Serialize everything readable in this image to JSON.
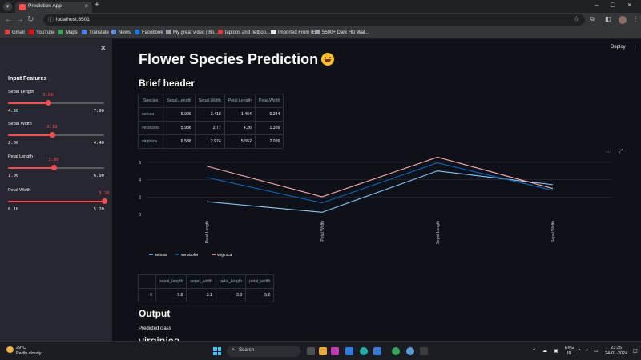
{
  "browser": {
    "tab_title": "Prediction App",
    "url": "localhost:8501",
    "bookmarks": [
      {
        "label": "Gmail",
        "color": "#ea4335"
      },
      {
        "label": "YouTube",
        "color": "#ff0000"
      },
      {
        "label": "Maps",
        "color": "#34a853"
      },
      {
        "label": "Translate",
        "color": "#4285f4"
      },
      {
        "label": "News",
        "color": "#5c8de6"
      },
      {
        "label": "Facebook",
        "color": "#1877f2"
      },
      {
        "label": "My great video | Bli...",
        "color": "#9aa0a6"
      },
      {
        "label": "laptops and netboo...",
        "color": "#e53935"
      },
      {
        "label": "Imported From IE",
        "color": "#e8eaed"
      },
      {
        "label": "5500+ Dark HD Wal...",
        "color": "#9aa0a6"
      }
    ]
  },
  "app": {
    "deploy_label": "Deploy",
    "title": "Flower Species Prediction",
    "accent": "#ff4b4b"
  },
  "sidebar": {
    "heading": "Input Features",
    "sliders": [
      {
        "label": "Sepal Length",
        "value": "5.80",
        "min": "4.30",
        "max": "7.90",
        "fraction": 0.417
      },
      {
        "label": "Sepal Width",
        "value": "3.10",
        "min": "2.00",
        "max": "4.40",
        "fraction": 0.458
      },
      {
        "label": "Petal Length",
        "value": "3.80",
        "min": "1.00",
        "max": "6.90",
        "fraction": 0.475
      },
      {
        "label": "Petal Width",
        "value": "5.20",
        "min": "0.10",
        "max": "5.20",
        "fraction": 1.0
      }
    ]
  },
  "summary": {
    "header": "Brief header",
    "columns": [
      "Species",
      "Sepal.Length",
      "Sepal.Width",
      "Petal.Length",
      "Petal.Width"
    ],
    "rows": [
      [
        "setosa",
        "5.006",
        "3.418",
        "1.464",
        "0.244"
      ],
      [
        "versicolor",
        "5.936",
        "2.77",
        "4.26",
        "1.326"
      ],
      [
        "virginica",
        "6.588",
        "2.974",
        "5.552",
        "2.026"
      ]
    ]
  },
  "chart_data": {
    "type": "line",
    "categories": [
      "Petal.Length",
      "Petal.Width",
      "Sepal.Length",
      "Sepal.Width"
    ],
    "ylim": [
      0,
      7
    ],
    "yticks": [
      "0",
      "2",
      "4",
      "6"
    ],
    "grid": true,
    "legend": "bottom-left",
    "series": [
      {
        "name": "setosa",
        "values": [
          1.464,
          0.244,
          5.006,
          3.418
        ],
        "color": "#83c9ff"
      },
      {
        "name": "versicolor",
        "values": [
          4.26,
          1.326,
          5.936,
          2.77
        ],
        "color": "#0068c9"
      },
      {
        "name": "virginica",
        "values": [
          5.552,
          2.026,
          6.588,
          2.974
        ],
        "color": "#ffabab"
      }
    ]
  },
  "input_table": {
    "columns": [
      "",
      "sepal_length",
      "sepal_width",
      "petal_length",
      "petal_width"
    ],
    "rows": [
      [
        "0",
        "5.8",
        "3.1",
        "3.8",
        "5.2"
      ]
    ]
  },
  "output": {
    "header": "Output",
    "label": "Predicted class",
    "value": "virginica"
  },
  "taskbar": {
    "temperature": "29°C",
    "weather": "Partly cloudy",
    "search": "Search",
    "lang_top": "ENG",
    "lang_bottom": "IN",
    "time": "23:35",
    "date": "24-01-2024"
  }
}
